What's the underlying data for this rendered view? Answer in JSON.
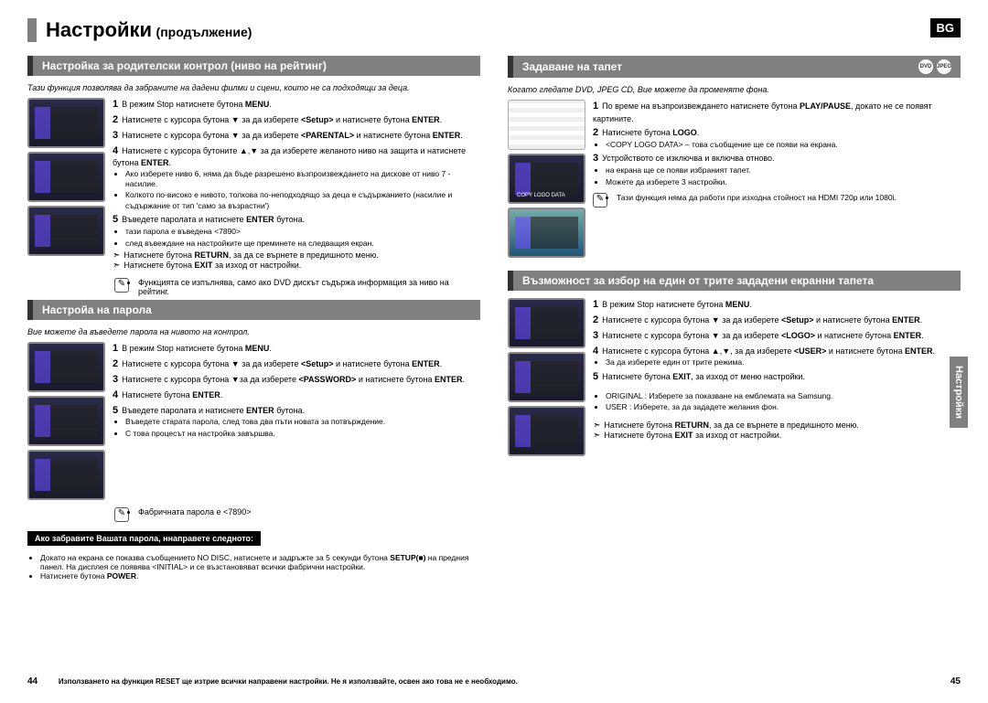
{
  "badge": "BG",
  "sideTab": "Настройки",
  "title": {
    "big": "Настройки",
    "small": "(продължение)"
  },
  "pageLeft": "44",
  "pageRight": "45",
  "footerNote": "Използването на функция RESET ще изтрие всички направени настройки. Не я използвайте, освен ако това не е необходимо.",
  "left": {
    "s1": {
      "head": "Настройка за родителски контрол (ниво на рейтинг)",
      "italic": "Тази функция позволява да забраните на дадени филми и сцени, които не са подходящи за деца.",
      "steps": [
        "В режим Stop натиснете бутона <b>MENU</b>.",
        "Натиснете с курсора бутона ▼ за да изберете <b>&lt;Setup&gt;</b> и натиснете бутона <b>ENTER</b>.",
        "Натиснете с курсора бутона ▼ за да изберете <b>&lt;PARENTAL&gt;</b> и натиснете бутона <b>ENTER</b>.",
        "Натиснете с курсора бутоните ▲,▼ за да изберете желаното ниво на защита и натиснете бутона <b>ENTER</b>.",
        "Въведете паролата и натиснете <b>ENTER</b> бутона."
      ],
      "sub4": [
        "Ако изберете ниво 6, няма да бъде разрешено възпроизвеждането на дискове от ниво 7 - насилие.",
        "Колкото по-високо е нивото, толкова по-неподходящо за деца е съдържанието (насилие и съдържание от тип 'само за възрастни')"
      ],
      "sub5": [
        "тази парола е въведена <7890>",
        "след въвеждане на настройките ще преминете на следващия екран."
      ],
      "ret": "Натиснете бутона <b>RETURN</b>, за да се върнете в предишното меню.",
      "exit": "Натиснете бутона <b>EXIT</b> за изход от настройки.",
      "note": "Функцията се изпълнява, само ако DVD дискът съдържа информация за ниво на рейтинг."
    },
    "s2": {
      "head": "Настройа на парола",
      "italic": "Вие можете да въведете парола на нивото на контрол.",
      "steps": [
        "В режим Stop натиснете бутона <b>MENU</b>.",
        "Натиснете с курсора бутона ▼ за да изберете <b>&lt;Setup&gt;</b> и натиснете бутона <b>ENTER</b>.",
        "Натиснете с курсора бутона ▼за да изберете <b>&lt;PASSWORD&gt;</b> и натиснете бутона <b>ENTER</b>.",
        "Натиснете бутона <b>ENTER</b>.",
        "Въведете паролата и натиснете <b>ENTER</b> бутона."
      ],
      "sub5": [
        "Въведете старата парола, след това два пъти новата за потвърждение.",
        "С това процесът на настройка завършва."
      ],
      "note": "Фабричната парола е <7890>"
    },
    "black": "Ако забравите Вашата парола, ннаправете следното:",
    "foot": [
      "Докато на екрана се показва съобщението NO DISC, натиснете и задръжте за 5 секунди бутона <b>SETUP(■)</b> на предния панел. На дисплея се появява  &lt;INITIAL&gt;  и се възстановяват всички фабрични настройки.",
      "Натиснете бутона <b>POWER</b>."
    ]
  },
  "right": {
    "s1": {
      "head": "Задаване на тапет",
      "icons": [
        "DVD",
        "JPEG"
      ],
      "italic": "Когато гледате DVD, JPEG CD, Вие можете да променяте фона.",
      "copyLabel": "COPY LOGO DATA",
      "steps": [
        "По време на възпроизвеждането натиснете бутона <b>PLAY/PAUSE</b>, докато не се появят картините.",
        "Натиснете бутона <b>LOGO</b>.",
        "Устройството се изключва и включва отново."
      ],
      "sub2": [
        "&lt;COPY LOGO DATA&gt; – това съобщение ще се появи на екрана."
      ],
      "sub3": [
        "на екрана ще се появи избраният тапет.",
        "Можете да изберете 3 настройки."
      ],
      "note": "Тази функция няма да работи при изходна стойност на HDMI 720p или 1080i."
    },
    "s2": {
      "head": "Възможност за избор на един от трите зададени екранни тапета",
      "steps": [
        "В режим Stop натиснете бутона <b>MENU</b>.",
        "Натиснете с курсора бутона ▼ за да изберете <b>&lt;Setup&gt;</b> и натиснете бутона <b>ENTER</b>.",
        "Натиснете с курсора бутона ▼ за да изберете <b>&lt;LOGO&gt;</b> и натиснете бутона <b>ENTER</b>.",
        "Натиснете с курсора бутона ▲,▼, за да изберете <b>&lt;USER&gt;</b> и натиснете бутона <b>ENTER</b>.",
        "Натиснете бутона <b>EXIT</b>, за изход от меню настройки."
      ],
      "sub4": [
        "За да изберете един от трите режима."
      ],
      "foot": [
        "ORIGINAL : Изберете за показване на емблемата на Samsung.",
        "USER : Изберете, за да зададете желания фон."
      ],
      "ret": "Натиснете бутона <b>RETURN</b>, за да се върнете в предишното меню.",
      "exit": "Натиснете бутона <b>EXIT</b> за изход от настройки."
    }
  }
}
